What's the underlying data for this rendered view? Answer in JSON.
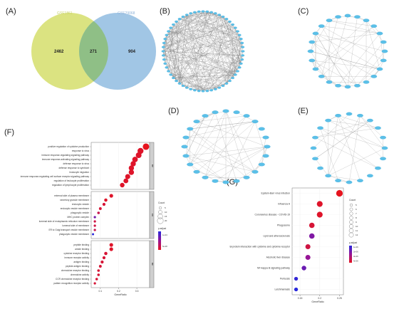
{
  "panel_labels": {
    "a": "(A)",
    "b": "(B)",
    "c": "(C)",
    "d": "(D)",
    "e": "(E)",
    "f": "(F)",
    "g": "(G)"
  },
  "venn": {
    "left_label": "GSE1861",
    "right_label": "GSE29068",
    "left_only": "2462",
    "intersection": "271",
    "right_only": "904",
    "left_color": "#d9e27a",
    "right_color": "#9cc3e4",
    "overlap_color": "#8fbf86"
  },
  "networks": [
    {
      "id": "B",
      "nodes": 60,
      "edges": 320
    },
    {
      "id": "C",
      "nodes": 24,
      "edges": 60
    },
    {
      "id": "D",
      "nodes": 24,
      "edges": 50
    },
    {
      "id": "E",
      "nodes": 20,
      "edges": 28
    }
  ],
  "node_color": "#5bc0e8",
  "chart_data": [
    {
      "id": "F",
      "type": "scatter",
      "xlabel": "GeneRatio",
      "xticks": [
        0.1,
        0.2,
        0.3
      ],
      "xlim": [
        0.05,
        0.37
      ],
      "legend_title_size": "Count",
      "legend_sizes": [
        5,
        10,
        15,
        20
      ],
      "legend_title_color": "p.adjust",
      "legend_color_ticks": [
        "1e-04",
        "5e-08"
      ],
      "groups": [
        {
          "name": "BP",
          "terms": [
            {
              "term": "positive regulation of cytokine production",
              "ratio": 0.35,
              "count": 22,
              "p": 0.0
            },
            {
              "term": "response to virus",
              "ratio": 0.32,
              "count": 20,
              "p": 0.05
            },
            {
              "term": "immune response-regulating signaling pathway",
              "ratio": 0.31,
              "count": 19,
              "p": 0.05
            },
            {
              "term": "immune response-activating signaling pathway",
              "ratio": 0.29,
              "count": 18,
              "p": 0.05
            },
            {
              "term": "defense response to virus",
              "ratio": 0.28,
              "count": 17,
              "p": 0.05
            },
            {
              "term": "defense response to symbiont",
              "ratio": 0.27,
              "count": 17,
              "p": 0.05
            },
            {
              "term": "leukocyte migration",
              "ratio": 0.27,
              "count": 17,
              "p": 0.05
            },
            {
              "term": "immune response-regulating cell surface receptor signaling pathway",
              "ratio": 0.25,
              "count": 16,
              "p": 0.05
            },
            {
              "term": "regulation of leukocyte proliferation",
              "ratio": 0.24,
              "count": 15,
              "p": 0.05
            },
            {
              "term": "regulation of lymphocyte proliferation",
              "ratio": 0.22,
              "count": 14,
              "p": 0.05
            }
          ]
        },
        {
          "name": "CC",
          "terms": [
            {
              "term": "external side of plasma membrane",
              "ratio": 0.16,
              "count": 10,
              "p": 0.05
            },
            {
              "term": "secretory granule membrane",
              "ratio": 0.13,
              "count": 8,
              "p": 0.05
            },
            {
              "term": "endocytic vesicle",
              "ratio": 0.12,
              "count": 7,
              "p": 0.1
            },
            {
              "term": "endocytic vesicle membrane",
              "ratio": 0.1,
              "count": 6,
              "p": 0.1
            },
            {
              "term": "phagocytic vesicle",
              "ratio": 0.09,
              "count": 5,
              "p": 0.2
            },
            {
              "term": "MHC protein complex",
              "ratio": 0.07,
              "count": 4,
              "p": 0.65
            },
            {
              "term": "lumenal side of endoplasmic reticulum membrane",
              "ratio": 0.07,
              "count": 4,
              "p": 0.15
            },
            {
              "term": "lumenal side of membrane",
              "ratio": 0.07,
              "count": 4,
              "p": 0.15
            },
            {
              "term": "ER to Golgi transport vesicle membrane",
              "ratio": 0.07,
              "count": 4,
              "p": 0.2
            },
            {
              "term": "phagocytic vesicle membrane",
              "ratio": 0.06,
              "count": 3,
              "p": 1.0
            }
          ]
        },
        {
          "name": "MF",
          "terms": [
            {
              "term": "peptide binding",
              "ratio": 0.16,
              "count": 10,
              "p": 0.05
            },
            {
              "term": "amide binding",
              "ratio": 0.16,
              "count": 10,
              "p": 0.05
            },
            {
              "term": "cytokine receptor binding",
              "ratio": 0.13,
              "count": 8,
              "p": 0.1
            },
            {
              "term": "immune receptor activity",
              "ratio": 0.12,
              "count": 7,
              "p": 0.1
            },
            {
              "term": "antigen binding",
              "ratio": 0.11,
              "count": 7,
              "p": 0.1
            },
            {
              "term": "peptide antigen binding",
              "ratio": 0.1,
              "count": 6,
              "p": 0.1
            },
            {
              "term": "chemokine receptor binding",
              "ratio": 0.09,
              "count": 5,
              "p": 0.1
            },
            {
              "term": "chemokine activity",
              "ratio": 0.09,
              "count": 5,
              "p": 0.1
            },
            {
              "term": "CCR chemokine receptor binding",
              "ratio": 0.08,
              "count": 5,
              "p": 0.1
            },
            {
              "term": "pattern recognition receptor activity",
              "ratio": 0.07,
              "count": 4,
              "p": 0.1
            }
          ]
        }
      ]
    },
    {
      "id": "G",
      "type": "scatter",
      "xlabel": "GeneRatio",
      "xticks": [
        0.15,
        0.2,
        0.25
      ],
      "xlim": [
        0.13,
        0.26
      ],
      "legend_title_size": "Count",
      "legend_sizes": [
        5,
        6,
        7,
        8,
        9,
        10,
        11,
        12
      ],
      "legend_title_color": "p.adjust",
      "legend_color_ticks": [
        "1e-06",
        "2e-06",
        "3e-06",
        "4e-06"
      ],
      "terms": [
        {
          "term": "Epstein-Barr virus infection",
          "ratio": 0.25,
          "count": 13,
          "p": 0.0
        },
        {
          "term": "Influenza A",
          "ratio": 0.2,
          "count": 11,
          "p": 0.05
        },
        {
          "term": "Coronavirus disease - COVID-19",
          "ratio": 0.2,
          "count": 11,
          "p": 0.05
        },
        {
          "term": "Phagosome",
          "ratio": 0.18,
          "count": 10,
          "p": 0.1
        },
        {
          "term": "Lipid and atherosclerosis",
          "ratio": 0.18,
          "count": 10,
          "p": 0.6
        },
        {
          "term": "Viral protein interaction with cytokine and cytokine receptor",
          "ratio": 0.17,
          "count": 9,
          "p": 0.15
        },
        {
          "term": "Alcoholic liver disease",
          "ratio": 0.17,
          "count": 9,
          "p": 0.5
        },
        {
          "term": "NF-kappa B signaling pathway",
          "ratio": 0.16,
          "count": 8,
          "p": 0.7
        },
        {
          "term": "Pertussis",
          "ratio": 0.14,
          "count": 6,
          "p": 0.95
        },
        {
          "term": "Leishmaniasis",
          "ratio": 0.14,
          "count": 6,
          "p": 1.0
        }
      ]
    }
  ]
}
